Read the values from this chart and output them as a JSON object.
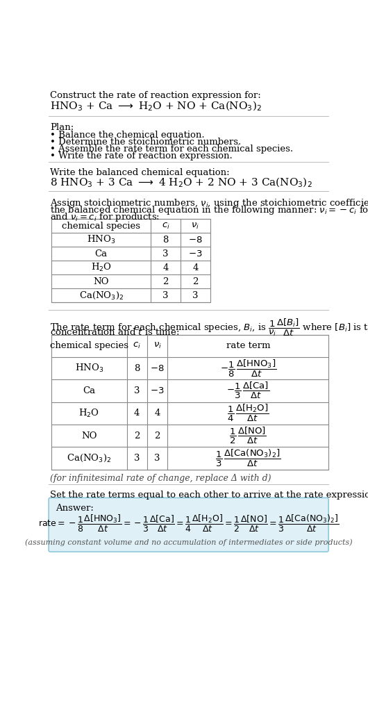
{
  "title_line1": "Construct the rate of reaction expression for:",
  "title_line2": "HNO$_3$ + Ca $\\longrightarrow$ H$_2$O + NO + Ca(NO$_3$)$_2$",
  "plan_header": "Plan:",
  "plan_bullets": [
    "• Balance the chemical equation.",
    "• Determine the stoichiometric numbers.",
    "• Assemble the rate term for each chemical species.",
    "• Write the rate of reaction expression."
  ],
  "balanced_header": "Write the balanced chemical equation:",
  "balanced_eq": "8 HNO$_3$ + 3 Ca $\\longrightarrow$ 4 H$_2$O + 2 NO + 3 Ca(NO$_3$)$_2$",
  "stoich_intro_1": "Assign stoichiometric numbers, $\\nu_i$, using the stoichiometric coefficients, $c_i$, from",
  "stoich_intro_2": "the balanced chemical equation in the following manner: $\\nu_i = -c_i$ for reactants",
  "stoich_intro_3": "and $\\nu_i = c_i$ for products:",
  "table1_headers": [
    "chemical species",
    "$c_i$",
    "$\\nu_i$"
  ],
  "table1_rows": [
    [
      "HNO$_3$",
      "8",
      "$-8$"
    ],
    [
      "Ca",
      "3",
      "$-3$"
    ],
    [
      "H$_2$O",
      "4",
      "4"
    ],
    [
      "NO",
      "2",
      "2"
    ],
    [
      "Ca(NO$_3$)$_2$",
      "3",
      "3"
    ]
  ],
  "rate_intro_1": "The rate term for each chemical species, $B_i$, is $\\dfrac{1}{\\nu_i}\\dfrac{\\Delta[B_i]}{\\Delta t}$ where $[B_i]$ is the amount",
  "rate_intro_2": "concentration and $t$ is time:",
  "table2_headers": [
    "chemical species",
    "$c_i$",
    "$\\nu_i$",
    "rate term"
  ],
  "table2_rows": [
    [
      "HNO$_3$",
      "8",
      "$-8$",
      "$-\\dfrac{1}{8}\\,\\dfrac{\\Delta[\\mathrm{HNO_3}]}{\\Delta t}$"
    ],
    [
      "Ca",
      "3",
      "$-3$",
      "$-\\dfrac{1}{3}\\,\\dfrac{\\Delta[\\mathrm{Ca}]}{\\Delta t}$"
    ],
    [
      "H$_2$O",
      "4",
      "4",
      "$\\dfrac{1}{4}\\,\\dfrac{\\Delta[\\mathrm{H_2O}]}{\\Delta t}$"
    ],
    [
      "NO",
      "2",
      "2",
      "$\\dfrac{1}{2}\\,\\dfrac{\\Delta[\\mathrm{NO}]}{\\Delta t}$"
    ],
    [
      "Ca(NO$_3$)$_2$",
      "3",
      "3",
      "$\\dfrac{1}{3}\\,\\dfrac{\\Delta[\\mathrm{Ca(NO_3)_2}]}{\\Delta t}$"
    ]
  ],
  "infinitesimal_note": "(for infinitesimal rate of change, replace Δ with d)",
  "final_intro": "Set the rate terms equal to each other to arrive at the rate expression:",
  "answer_label": "Answer:",
  "answer_box_color": "#dff0f7",
  "answer_box_border": "#8ec8dd",
  "rate_expression": "$\\mathrm{rate} = -\\dfrac{1}{8}\\dfrac{\\Delta[\\mathrm{HNO_3}]}{\\Delta t} = -\\dfrac{1}{3}\\dfrac{\\Delta[\\mathrm{Ca}]}{\\Delta t} = \\dfrac{1}{4}\\dfrac{\\Delta[\\mathrm{H_2O}]}{\\Delta t} = \\dfrac{1}{2}\\dfrac{\\Delta[\\mathrm{NO}]}{\\Delta t} = \\dfrac{1}{3}\\dfrac{\\Delta[\\mathrm{Ca(NO_3)_2}]}{\\Delta t}$",
  "assuming_note": "(assuming constant volume and no accumulation of intermediates or side products)",
  "bg_color": "#ffffff",
  "text_color": "#000000",
  "sep_color": "#bbbbbb",
  "table_color": "#888888",
  "font_size": 9.5
}
